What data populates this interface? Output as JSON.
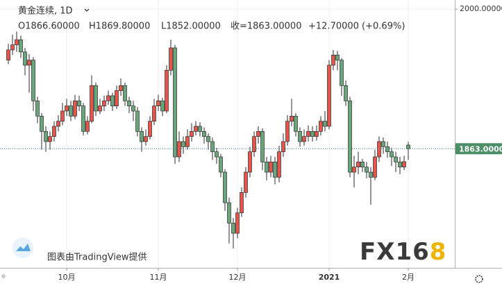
{
  "chart_data": {
    "type": "candlestick",
    "symbol": "黄金连续, 1D",
    "ohlc_text": [
      "O1866.60000",
      "H1869.80000",
      "L1852.00000",
      "收=1863.00000",
      "+12.70000 (+0.69%)"
    ],
    "attribution": "图表由TradingView提供",
    "watermark": [
      "FX16",
      "8"
    ],
    "categories": [
      null,
      null,
      null,
      null,
      null,
      null,
      null,
      null,
      null,
      null,
      null,
      null,
      null,
      null,
      "10月",
      null,
      null,
      null,
      null,
      null,
      null,
      null,
      null,
      null,
      null,
      null,
      null,
      null,
      null,
      null,
      null,
      null,
      null,
      null,
      null,
      null,
      "11月",
      null,
      null,
      null,
      null,
      null,
      null,
      null,
      null,
      null,
      null,
      null,
      null,
      null,
      null,
      null,
      null,
      null,
      null,
      "12月",
      null,
      null,
      null,
      null,
      null,
      null,
      null,
      null,
      null,
      null,
      null,
      null,
      null,
      null,
      null,
      null,
      null,
      null,
      null,
      null,
      null,
      "2021",
      null,
      null,
      null,
      null,
      null,
      null,
      null,
      null,
      null,
      null,
      null,
      null,
      null,
      null,
      null,
      null,
      null,
      null,
      "2月"
    ],
    "open": [
      1950,
      1960,
      1965,
      1970,
      1958,
      1945,
      1950,
      1910,
      1895,
      1880,
      1870,
      1875,
      1885,
      1890,
      1900,
      1905,
      1895,
      1910,
      1905,
      1880,
      1890,
      1925,
      1900,
      1905,
      1910,
      1915,
      1905,
      1920,
      1925,
      1910,
      1905,
      1900,
      1880,
      1870,
      1875,
      1890,
      1905,
      1910,
      1900,
      1940,
      1962,
      1855,
      1870,
      1865,
      1875,
      1880,
      1885,
      1880,
      1875,
      1870,
      1860,
      1855,
      1840,
      1810,
      1790,
      1780,
      1800,
      1820,
      1840,
      1860,
      1875,
      1880,
      1850,
      1840,
      1850,
      1835,
      1860,
      1870,
      1890,
      1895,
      1880,
      1870,
      1875,
      1880,
      1875,
      1880,
      1890,
      1885,
      1945,
      1955,
      1950,
      1925,
      1910,
      1840,
      1845,
      1850,
      1845,
      1840,
      1835,
      1855,
      1870,
      1865,
      1860,
      1855,
      1850,
      1845,
      1866.6
    ],
    "high": [
      1966,
      1975,
      1978,
      1974,
      1962,
      1956,
      1953,
      1914,
      1898,
      1885,
      1880,
      1890,
      1896,
      1908,
      1912,
      1910,
      1916,
      1915,
      1908,
      1895,
      1935,
      1928,
      1912,
      1915,
      1920,
      1918,
      1925,
      1932,
      1928,
      1914,
      1910,
      1904,
      1884,
      1882,
      1895,
      1912,
      1916,
      1913,
      1945,
      1970,
      1965,
      1880,
      1875,
      1882,
      1888,
      1890,
      1889,
      1884,
      1878,
      1874,
      1864,
      1858,
      1843,
      1815,
      1795,
      1805,
      1825,
      1845,
      1865,
      1880,
      1885,
      1883,
      1855,
      1856,
      1855,
      1866,
      1878,
      1896,
      1912,
      1898,
      1884,
      1882,
      1886,
      1885,
      1886,
      1895,
      1900,
      1950,
      1960,
      1959,
      1952,
      1930,
      1914,
      1856,
      1860,
      1853,
      1850,
      1845,
      1862,
      1875,
      1874,
      1870,
      1864,
      1860,
      1855,
      1856,
      1869.8
    ],
    "low": [
      1946,
      1955,
      1958,
      1952,
      1935,
      1918,
      1900,
      1888,
      1862,
      1860,
      1862,
      1870,
      1880,
      1886,
      1895,
      1890,
      1892,
      1900,
      1876,
      1877,
      1888,
      1895,
      1897,
      1900,
      1906,
      1900,
      1902,
      1915,
      1905,
      1898,
      1890,
      1875,
      1860,
      1866,
      1872,
      1886,
      1900,
      1895,
      1898,
      1935,
      1848,
      1850,
      1858,
      1862,
      1870,
      1876,
      1875,
      1868,
      1862,
      1852,
      1848,
      1835,
      1802,
      1770,
      1765,
      1775,
      1796,
      1815,
      1835,
      1855,
      1868,
      1842,
      1832,
      1835,
      1828,
      1830,
      1855,
      1866,
      1885,
      1875,
      1865,
      1866,
      1870,
      1870,
      1871,
      1876,
      1880,
      1882,
      1940,
      1940,
      1915,
      1905,
      1835,
      1825,
      1838,
      1840,
      1834,
      1808,
      1832,
      1850,
      1858,
      1854,
      1846,
      1840,
      1838,
      1842,
      1852
    ],
    "close": [
      1960,
      1965,
      1970,
      1958,
      1945,
      1950,
      1910,
      1895,
      1880,
      1870,
      1875,
      1885,
      1890,
      1900,
      1905,
      1895,
      1910,
      1905,
      1880,
      1890,
      1925,
      1900,
      1905,
      1910,
      1915,
      1905,
      1920,
      1925,
      1910,
      1905,
      1900,
      1880,
      1870,
      1875,
      1890,
      1905,
      1910,
      1900,
      1940,
      1962,
      1855,
      1870,
      1865,
      1875,
      1880,
      1885,
      1880,
      1875,
      1870,
      1860,
      1855,
      1840,
      1810,
      1790,
      1780,
      1800,
      1820,
      1840,
      1860,
      1875,
      1880,
      1850,
      1840,
      1850,
      1835,
      1860,
      1870,
      1890,
      1895,
      1880,
      1870,
      1875,
      1880,
      1875,
      1880,
      1890,
      1885,
      1945,
      1955,
      1950,
      1925,
      1910,
      1840,
      1845,
      1850,
      1845,
      1840,
      1835,
      1855,
      1870,
      1865,
      1860,
      1855,
      1850,
      1845,
      1850.3,
      1863
    ],
    "up_color": "#e2574c",
    "down_color": "#6aa57c",
    "ylim": [
      1746,
      2009
    ],
    "yticks": [
      {
        "value": 2000,
        "label": "2000.00000"
      }
    ],
    "last_price": {
      "value": 1863,
      "label": "1863.00000"
    },
    "grid": true
  }
}
